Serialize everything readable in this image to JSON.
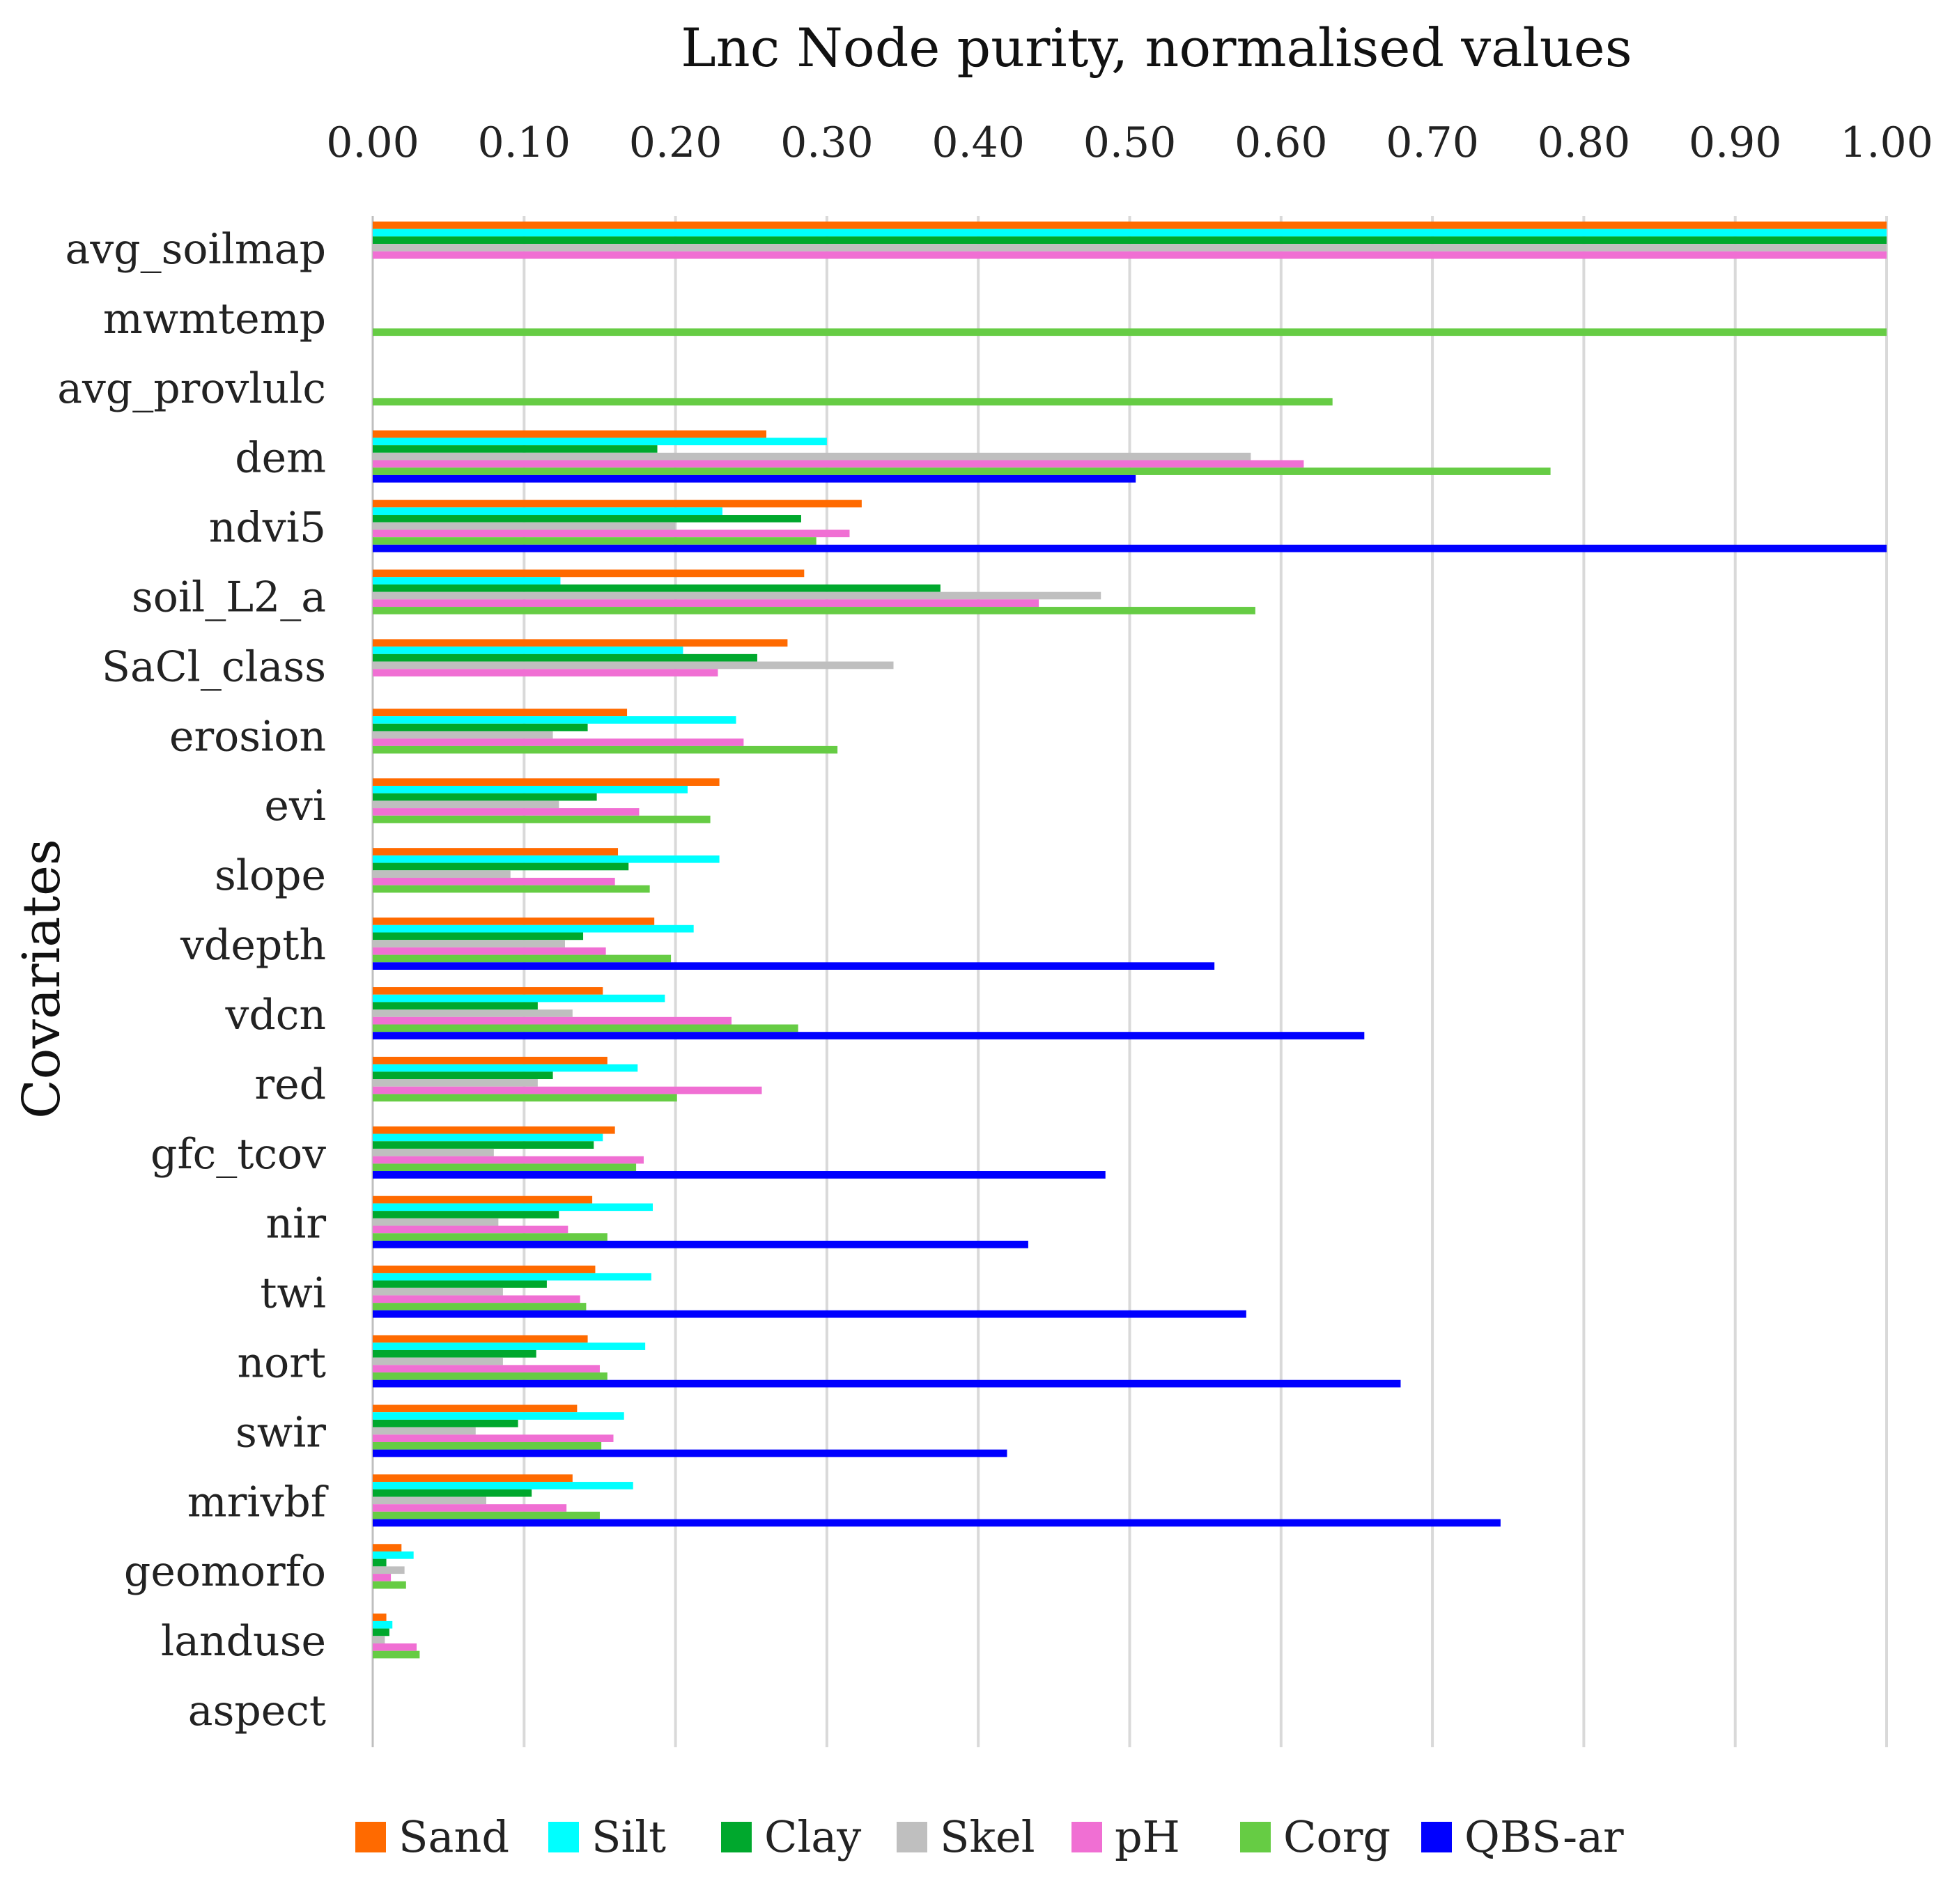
{
  "chart_data": {
    "type": "bar",
    "orientation": "horizontal",
    "title": "Lnc Node purity, normalised values",
    "xlabel": "Lnc Node purity, normalised values",
    "ylabel": "Covariates",
    "xlim": [
      0,
      1
    ],
    "xticks": [
      "0.00",
      "0.10",
      "0.20",
      "0.30",
      "0.40",
      "0.50",
      "0.60",
      "0.70",
      "0.80",
      "0.90",
      "1.00"
    ],
    "grid": true,
    "legend_position": "bottom",
    "categories": [
      "avg_soilmap",
      "mwmtemp",
      "avg_provlulc",
      "dem",
      "ndvi5",
      "soil_L2_a",
      "SaCl_class",
      "erosion",
      "evi",
      "slope",
      "vdepth",
      "vdcn",
      "red",
      "gfc_tcov",
      "nir",
      "twi",
      "nort",
      "swir",
      "mrivbf",
      "geomorfo",
      "landuse",
      "aspect"
    ],
    "series": [
      {
        "name": "Sand",
        "color": "#FF6A00",
        "values": [
          1.0,
          0,
          0,
          0.26,
          0.323,
          0.285,
          0.274,
          0.168,
          0.229,
          0.162,
          0.186,
          0.152,
          0.155,
          0.16,
          0.145,
          0.147,
          0.142,
          0.135,
          0.132,
          0.019,
          0.009,
          0
        ]
      },
      {
        "name": "Silt",
        "color": "#00FFFF",
        "values": [
          1.0,
          0,
          0,
          0.3,
          0.231,
          0.124,
          0.205,
          0.24,
          0.208,
          0.229,
          0.212,
          0.193,
          0.175,
          0.152,
          0.185,
          0.184,
          0.18,
          0.166,
          0.172,
          0.027,
          0.013,
          0
        ]
      },
      {
        "name": "Clay",
        "color": "#00A82D",
        "values": [
          1.0,
          0,
          0,
          0.188,
          0.283,
          0.375,
          0.254,
          0.142,
          0.148,
          0.169,
          0.139,
          0.109,
          0.119,
          0.146,
          0.123,
          0.115,
          0.108,
          0.096,
          0.105,
          0.009,
          0.011,
          0
        ]
      },
      {
        "name": "Skel",
        "color": "#BFBFBF",
        "values": [
          1.0,
          0,
          0,
          0.58,
          0.2,
          0.481,
          0.344,
          0.119,
          0.123,
          0.091,
          0.127,
          0.132,
          0.109,
          0.08,
          0.083,
          0.086,
          0.086,
          0.068,
          0.075,
          0.021,
          0.008,
          0
        ]
      },
      {
        "name": "pH",
        "color": "#F06FD3",
        "values": [
          1.0,
          0,
          0,
          0.615,
          0.315,
          0.44,
          0.228,
          0.245,
          0.176,
          0.16,
          0.154,
          0.237,
          0.257,
          0.179,
          0.129,
          0.137,
          0.15,
          0.159,
          0.128,
          0.012,
          0.029,
          0
        ]
      },
      {
        "name": "Corg",
        "color": "#66CC44",
        "values": [
          0,
          1.0,
          0.634,
          0.778,
          0.293,
          0.583,
          0,
          0.307,
          0.223,
          0.183,
          0.197,
          0.281,
          0.201,
          0.174,
          0.155,
          0.141,
          0.155,
          0.151,
          0.15,
          0.022,
          0.031,
          0
        ]
      },
      {
        "name": "QBS-ar",
        "color": "#0000FF",
        "values": [
          0,
          0,
          0,
          0.504,
          1.0,
          0,
          0,
          0,
          0,
          0,
          0.556,
          0.655,
          0,
          0.484,
          0.433,
          0.577,
          0.679,
          0.419,
          0.745,
          0,
          0,
          0
        ]
      }
    ]
  }
}
